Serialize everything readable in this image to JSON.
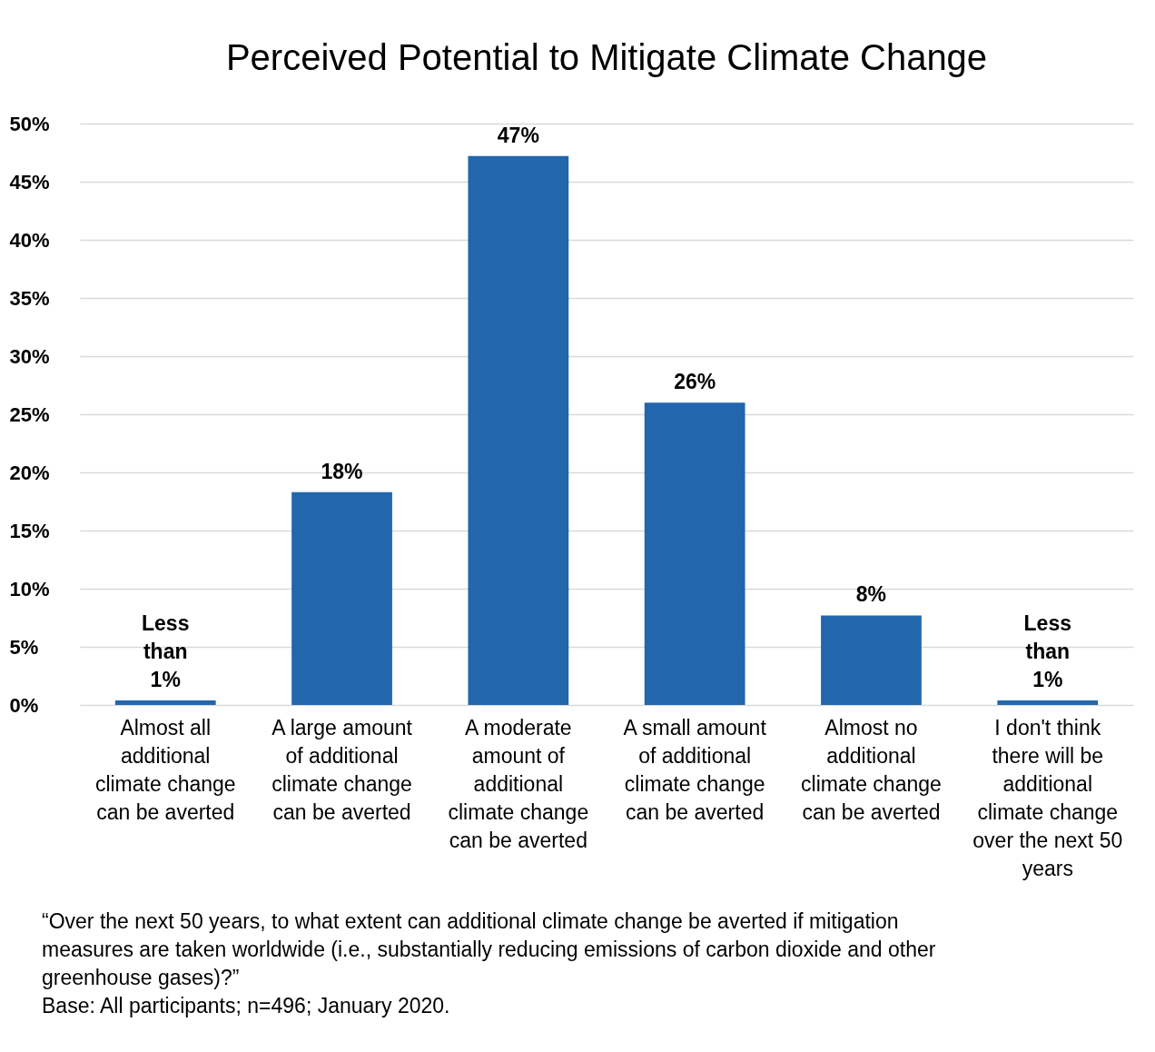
{
  "chart_data": {
    "type": "bar",
    "title": "Perceived Potential to Mitigate Climate Change",
    "categories": [
      "Almost all additional climate change can be averted",
      "A large amount of additional climate change can be averted",
      "A moderate amount of additional climate change can be averted",
      "A small amount of additional climate change can be averted",
      "Almost no additional climate change can be averted",
      "I don't think there will be additional climate change over the next 50 years"
    ],
    "values": [
      0.4,
      18.3,
      47.2,
      26.0,
      7.7,
      0.4
    ],
    "value_labels": [
      "Less than 1%",
      "18%",
      "47%",
      "26%",
      "8%",
      "Less than 1%"
    ],
    "color": "#2266ac",
    "ylim": [
      0,
      50
    ],
    "yticks": [
      {
        "value": 0,
        "label": "0%"
      },
      {
        "value": 5,
        "label": "5%"
      },
      {
        "value": 10,
        "label": "10%"
      },
      {
        "value": 15,
        "label": "15%"
      },
      {
        "value": 20,
        "label": "20%"
      },
      {
        "value": 25,
        "label": "25%"
      },
      {
        "value": 30,
        "label": "30%"
      },
      {
        "value": 35,
        "label": "35%"
      },
      {
        "value": 40,
        "label": "40%"
      },
      {
        "value": 45,
        "label": "45%"
      },
      {
        "value": 50,
        "label": "50%"
      }
    ],
    "grid": "y",
    "annotations": [
      "“Over the next 50 years, to what extent can additional climate change be averted if mitigation measures are taken worldwide (i.e., substantially reducing emissions of carbon dioxide and other greenhouse gases)?”",
      "Base: All participants; n=496; January 2020."
    ]
  }
}
